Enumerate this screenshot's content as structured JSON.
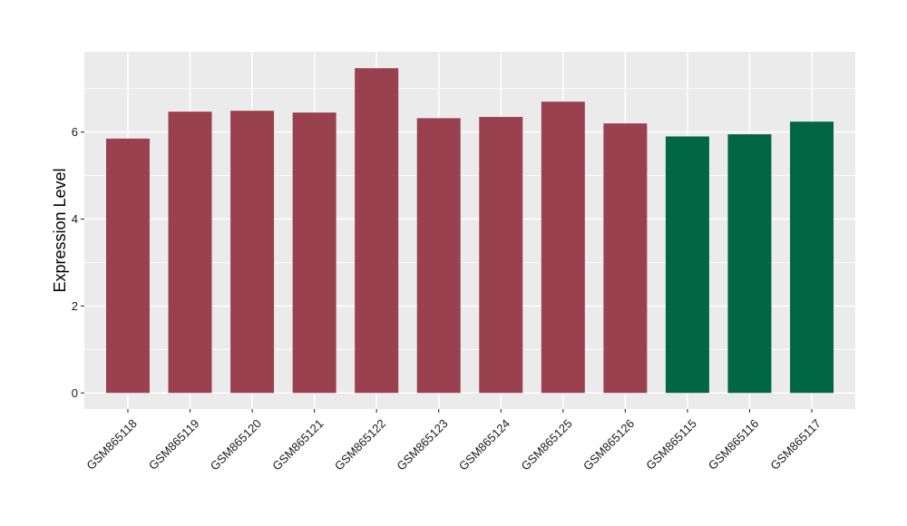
{
  "chart_data": {
    "type": "bar",
    "title": "",
    "xlabel": "",
    "ylabel": "Expression Level",
    "categories": [
      "GSM865118",
      "GSM865119",
      "GSM865120",
      "GSM865121",
      "GSM865122",
      "GSM865123",
      "GSM865124",
      "GSM865125",
      "GSM865126",
      "GSM865115",
      "GSM865116",
      "GSM865117"
    ],
    "values": [
      5.85,
      6.47,
      6.49,
      6.45,
      7.47,
      6.32,
      6.35,
      6.7,
      6.2,
      5.9,
      5.95,
      6.24
    ],
    "bar_colors": [
      "#99414f",
      "#99414f",
      "#99414f",
      "#99414f",
      "#99414f",
      "#99414f",
      "#99414f",
      "#99414f",
      "#99414f",
      "#006643",
      "#006643",
      "#006643"
    ],
    "yticks": [
      0,
      2,
      4,
      6
    ],
    "ylim": [
      -0.37,
      7.85
    ],
    "grid": true,
    "legend": "none",
    "panel_color": "#ebebeb",
    "grid_color": "#ffffff"
  }
}
